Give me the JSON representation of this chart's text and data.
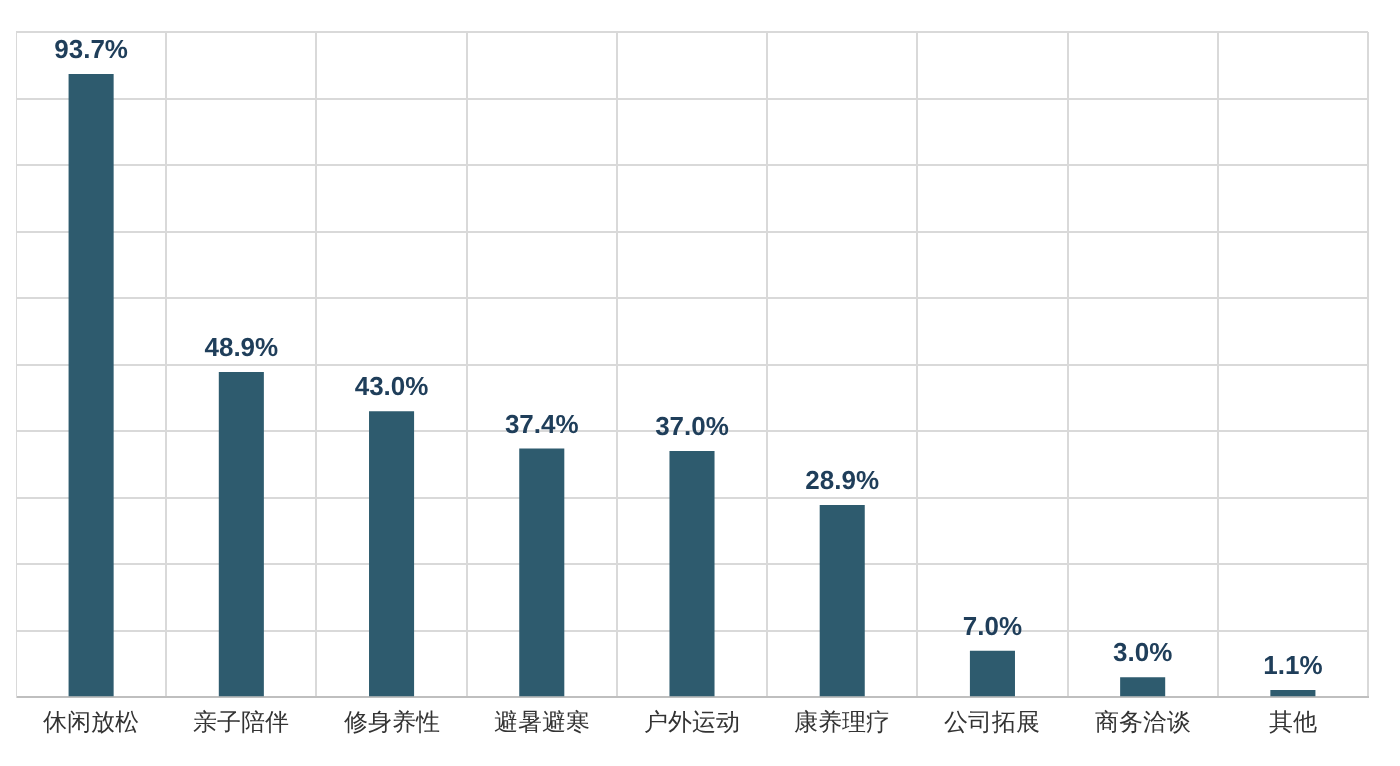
{
  "chart_data": {
    "type": "bar",
    "categories": [
      "休闲放松",
      "亲子陪伴",
      "修身养性",
      "避暑避寒",
      "户外运动",
      "康养理疗",
      "公司拓展",
      "商务洽谈",
      "其他"
    ],
    "values": [
      93.7,
      48.9,
      43.0,
      37.4,
      37.0,
      28.9,
      7.0,
      3.0,
      1.1
    ],
    "value_labels": [
      "93.7%",
      "48.9%",
      "43.0%",
      "37.4%",
      "37.0%",
      "28.9%",
      "7.0%",
      "3.0%",
      "1.1%"
    ],
    "color": "#2e5b6e",
    "ylim": [
      0,
      100
    ],
    "yticks": [
      {
        "value": 0,
        "label": null
      },
      {
        "value": 10,
        "label": null
      },
      {
        "value": 20,
        "label": null
      },
      {
        "value": 30,
        "label": null
      },
      {
        "value": 40,
        "label": null
      },
      {
        "value": 50,
        "label": null
      },
      {
        "value": 60,
        "label": null
      },
      {
        "value": 70,
        "label": null
      },
      {
        "value": 80,
        "label": null
      },
      {
        "value": 90,
        "label": null
      },
      {
        "value": 100,
        "label": null
      }
    ],
    "grid": true,
    "tick_labels": "x"
  }
}
